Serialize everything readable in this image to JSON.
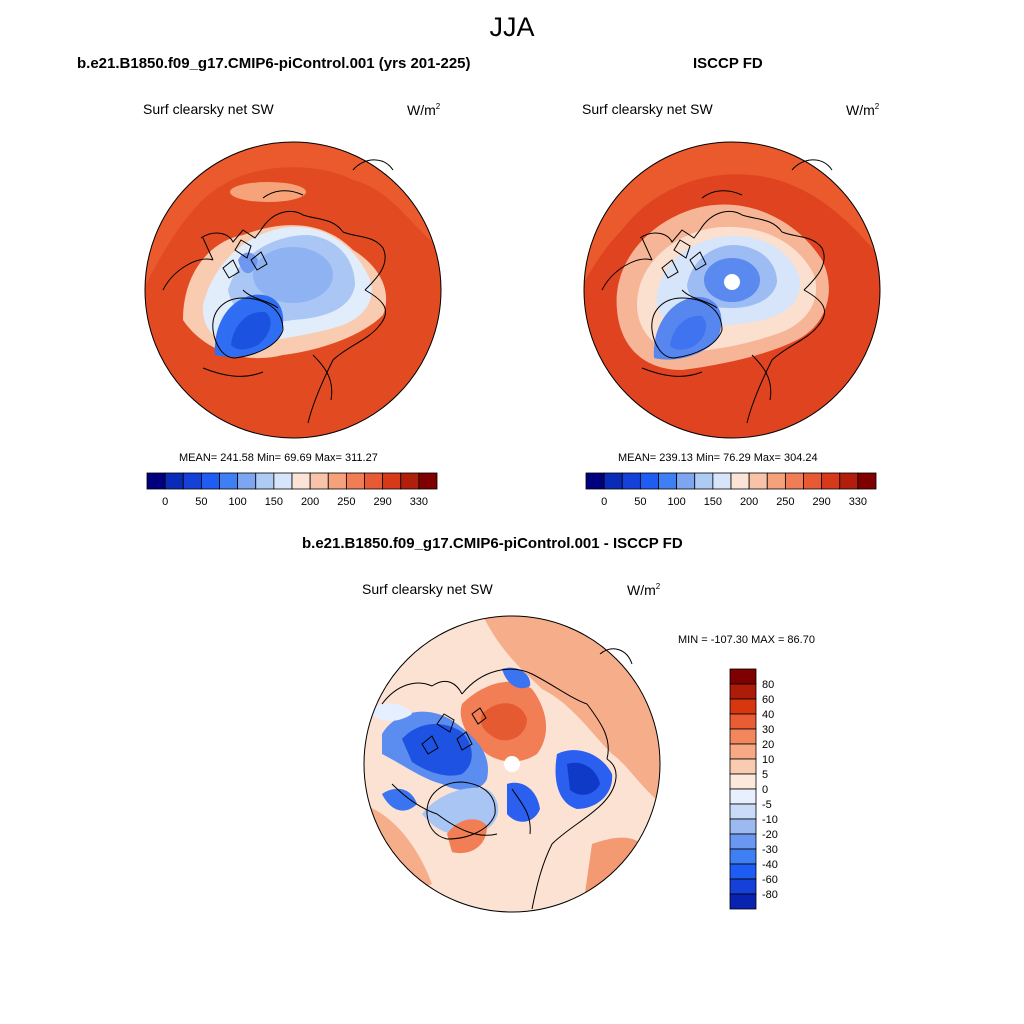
{
  "figure": {
    "season": "JJA"
  },
  "colors": {
    "abs_scale": [
      "#00007f",
      "#0a2bb7",
      "#1541d8",
      "#1e5cf4",
      "#3f7ff4",
      "#7ea6f0",
      "#aecbf3",
      "#d6e5fa",
      "#fbe4d6",
      "#f8c3a8",
      "#f4a17c",
      "#f07d55",
      "#e85a34",
      "#d63a1a",
      "#b11f0c",
      "#7f0000"
    ],
    "diff_scale": [
      "#00007f",
      "#0a22b0",
      "#1541d8",
      "#1e5cf4",
      "#3f7ff4",
      "#6a97f2",
      "#9cbaf0",
      "#c9dbf6",
      "#e7f0fc",
      "#fde9dc",
      "#f9cbb1",
      "#f6a984",
      "#f2875e",
      "#ea5c34",
      "#d8360f",
      "#ad1c08",
      "#7f0000"
    ]
  },
  "chart_data": [
    {
      "type": "polar-contour-map",
      "case_label": "b.e21.B1850.f09_g17.CMIP6-piControl.001 (yrs 201-225)",
      "variable": "Surf clearsky net SW",
      "units": "W/m",
      "units_exponent": "2",
      "stats": "MEAN= 241.58  Min=  69.69  Max= 311.27",
      "colorbar_ticks": [
        "0",
        "50",
        "100",
        "150",
        "200",
        "250",
        "290",
        "330"
      ]
    },
    {
      "type": "polar-contour-map",
      "case_label": "ISCCP FD",
      "variable": "Surf clearsky net SW",
      "units": "W/m",
      "units_exponent": "2",
      "stats": "MEAN= 239.13  Min=  76.29  Max= 304.24",
      "colorbar_ticks": [
        "0",
        "50",
        "100",
        "150",
        "200",
        "250",
        "290",
        "330"
      ]
    },
    {
      "type": "polar-contour-map",
      "case_label": "b.e21.B1850.f09_g17.CMIP6-piControl.001 - ISCCP FD",
      "variable": "Surf clearsky net SW",
      "units": "W/m",
      "units_exponent": "2",
      "stats": "MIN = -107.30 MAX =  86.70",
      "colorbar_ticks": [
        "80",
        "60",
        "40",
        "30",
        "20",
        "10",
        "5",
        "0",
        "-5",
        "-10",
        "-20",
        "-30",
        "-40",
        "-60",
        "-80"
      ]
    }
  ]
}
